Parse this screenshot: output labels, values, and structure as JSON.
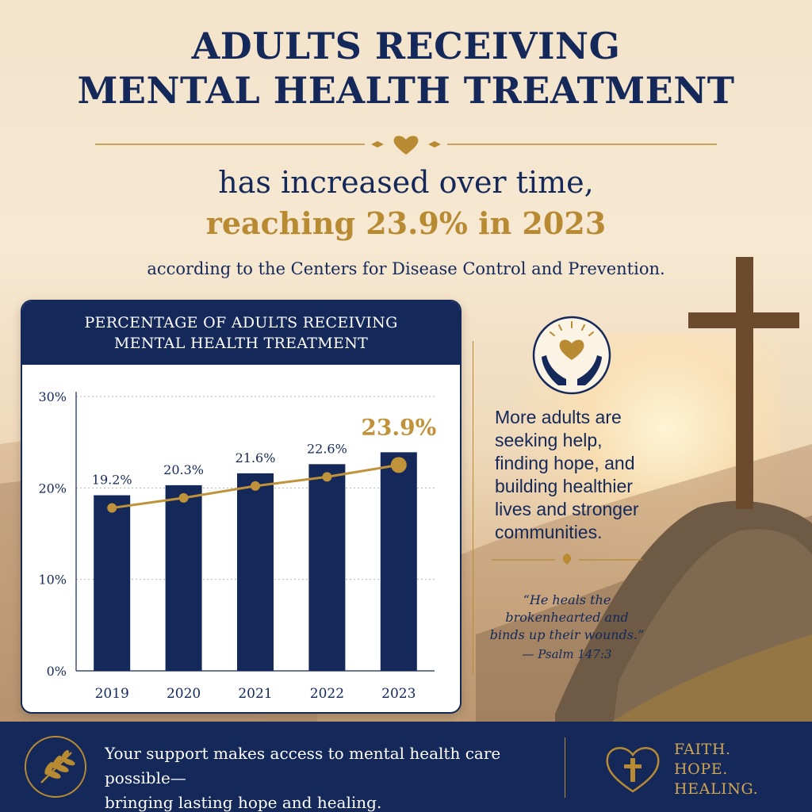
{
  "headline": {
    "title_line1": "ADULTS RECEIVING",
    "title_line2": "MENTAL HEALTH TREATMENT",
    "subtitle_line1": "has increased over time,",
    "subtitle_line2": "reaching 23.9% in 2023",
    "source": "according to the Centers for Disease Control and Prevention."
  },
  "chart_card": {
    "title_line1": "PERCENTAGE OF ADULTS RECEIVING",
    "title_line2": "MENTAL HEALTH TREATMENT"
  },
  "chart_data": {
    "type": "bar",
    "title": "PERCENTAGE OF ADULTS RECEIVING MENTAL HEALTH TREATMENT",
    "categories": [
      "2019",
      "2020",
      "2021",
      "2022",
      "2023"
    ],
    "values": [
      19.2,
      20.3,
      21.6,
      22.6,
      23.9
    ],
    "value_labels": [
      "19.2%",
      "20.3%",
      "21.6%",
      "22.6%",
      "23.9%"
    ],
    "overlay": "trend line with point markers at each bar value",
    "ylim": [
      0,
      30
    ],
    "y_ticks": [
      0,
      10,
      20,
      30
    ],
    "y_tick_labels": [
      "0%",
      "10%",
      "20%",
      "30%"
    ],
    "xlabel": "",
    "ylabel": "",
    "grid": true,
    "highlight_category": "2023",
    "colors": {
      "bar": "#14285a",
      "line": "#c0923a",
      "highlight_label": "#c0923a",
      "grid": "#b5b5b5"
    }
  },
  "side_panel": {
    "icon": "hands-holding-heart-icon",
    "message_lines": [
      "More adults are",
      "seeking help,",
      "finding hope, and",
      "building healthier",
      "lives and stronger",
      "communities."
    ],
    "quote_lines": [
      "“He heals the",
      "brokenhearted and",
      "binds up their wounds.”"
    ],
    "quote_ref": "— Psalm 147:3"
  },
  "footer": {
    "icon": "olive-branch-icon",
    "text_line1": "Your support makes access to mental health care possible—",
    "text_line2": "bringing lasting hope and healing.",
    "tagline": [
      "FAITH.",
      "HOPE.",
      "HEALING."
    ],
    "tagline_icon": "heart-cross-icon"
  },
  "colors": {
    "navy": "#14285a",
    "gold": "#b88a32",
    "background": "#f3e3cb"
  }
}
